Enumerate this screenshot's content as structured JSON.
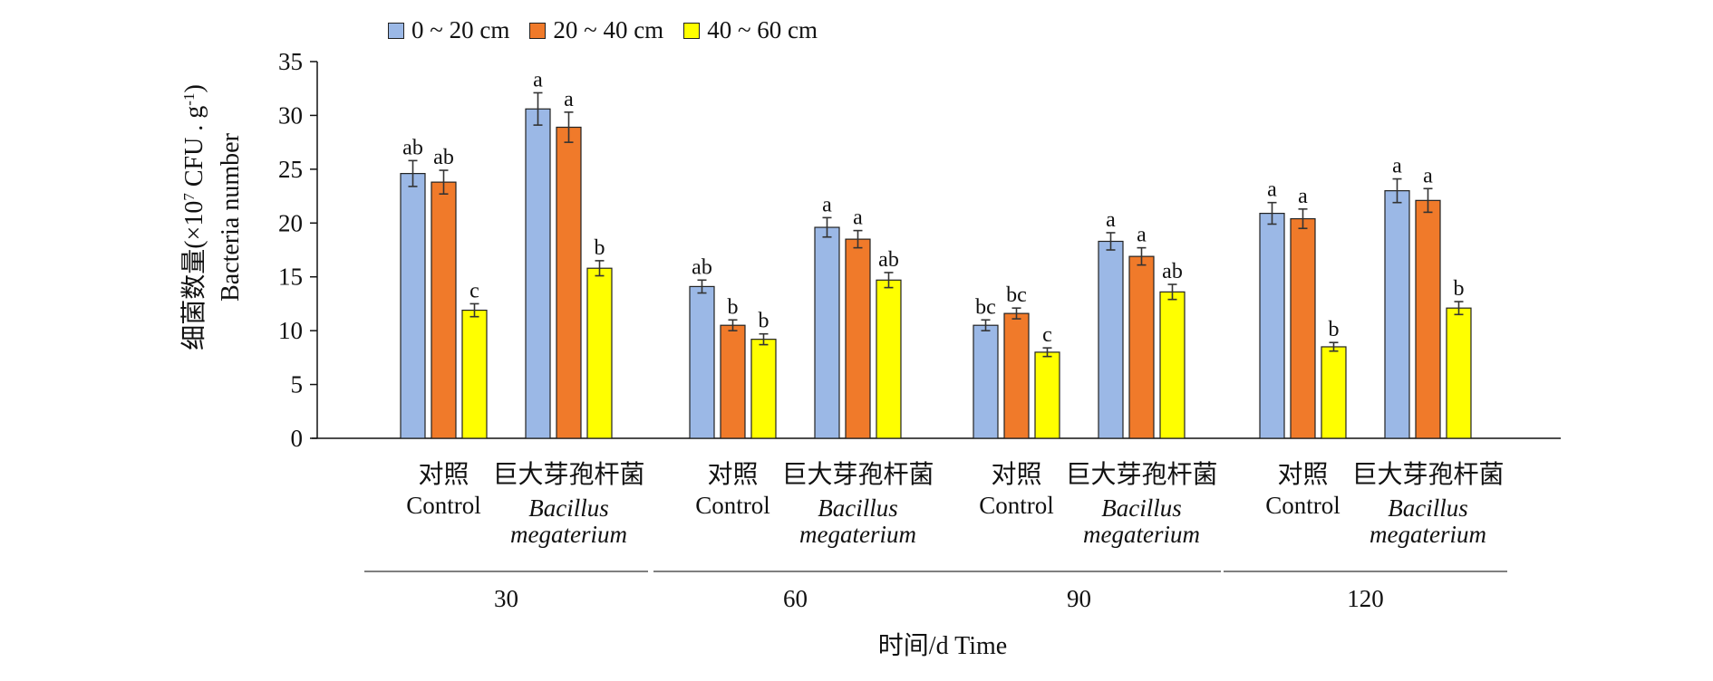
{
  "chart_data": {
    "type": "bar",
    "xlabel": "时间/d Time",
    "ylabel_cn": "细菌数量(×10",
    "ylabel_exp": "7",
    "ylabel_unit": " CFU . g",
    "ylabel_unit_exp": "-1",
    "ylabel_close": ")",
    "ylabel_en": "Bacteria number",
    "ylim": [
      0,
      35
    ],
    "yticks": [
      0,
      5,
      10,
      15,
      20,
      25,
      30,
      35
    ],
    "series": [
      {
        "name": "0 ~ 20 cm",
        "color": "#9bb8e6"
      },
      {
        "name": "20 ~ 40 cm",
        "color": "#f07a2a"
      },
      {
        "name": "40 ~ 60 cm",
        "color": "#ffff00"
      }
    ],
    "groups": [
      {
        "time": "30",
        "treatments": [
          {
            "label_cn": "对照",
            "label_en": "Control",
            "italic": false,
            "values": [
              24.6,
              23.8,
              11.9
            ],
            "errors": [
              1.2,
              1.1,
              0.6
            ],
            "letters": [
              "ab",
              "ab",
              "c"
            ]
          },
          {
            "label_cn": "巨大芽孢杆菌",
            "label_en": "Bacillus megaterium",
            "italic": true,
            "values": [
              30.6,
              28.9,
              15.8
            ],
            "errors": [
              1.5,
              1.4,
              0.7
            ],
            "letters": [
              "a",
              "a",
              "b"
            ]
          }
        ]
      },
      {
        "time": "60",
        "treatments": [
          {
            "label_cn": "对照",
            "label_en": "Control",
            "italic": false,
            "values": [
              14.1,
              10.5,
              9.2
            ],
            "errors": [
              0.6,
              0.5,
              0.5
            ],
            "letters": [
              "ab",
              "b",
              "b"
            ]
          },
          {
            "label_cn": "巨大芽孢杆菌",
            "label_en": "Bacillus megaterium",
            "italic": true,
            "values": [
              19.6,
              18.5,
              14.7
            ],
            "errors": [
              0.9,
              0.8,
              0.7
            ],
            "letters": [
              "a",
              "a",
              "ab"
            ]
          }
        ]
      },
      {
        "time": "90",
        "treatments": [
          {
            "label_cn": "对照",
            "label_en": "Control",
            "italic": false,
            "values": [
              10.5,
              11.6,
              8.0
            ],
            "errors": [
              0.5,
              0.5,
              0.4
            ],
            "letters": [
              "bc",
              "bc",
              "c"
            ]
          },
          {
            "label_cn": "巨大芽孢杆菌",
            "label_en": "Bacillus megaterium",
            "italic": true,
            "values": [
              18.3,
              16.9,
              13.6
            ],
            "errors": [
              0.8,
              0.8,
              0.7
            ],
            "letters": [
              "a",
              "a",
              "ab"
            ]
          }
        ]
      },
      {
        "time": "120",
        "treatments": [
          {
            "label_cn": "对照",
            "label_en": "Control",
            "italic": false,
            "values": [
              20.9,
              20.4,
              8.5
            ],
            "errors": [
              1.0,
              0.9,
              0.4
            ],
            "letters": [
              "a",
              "a",
              "b"
            ]
          },
          {
            "label_cn": "巨大芽孢杆菌",
            "label_en": "Bacillus megaterium",
            "italic": true,
            "values": [
              23.0,
              22.1,
              12.1
            ],
            "errors": [
              1.1,
              1.1,
              0.6
            ],
            "letters": [
              "a",
              "a",
              "b"
            ]
          }
        ]
      }
    ]
  }
}
